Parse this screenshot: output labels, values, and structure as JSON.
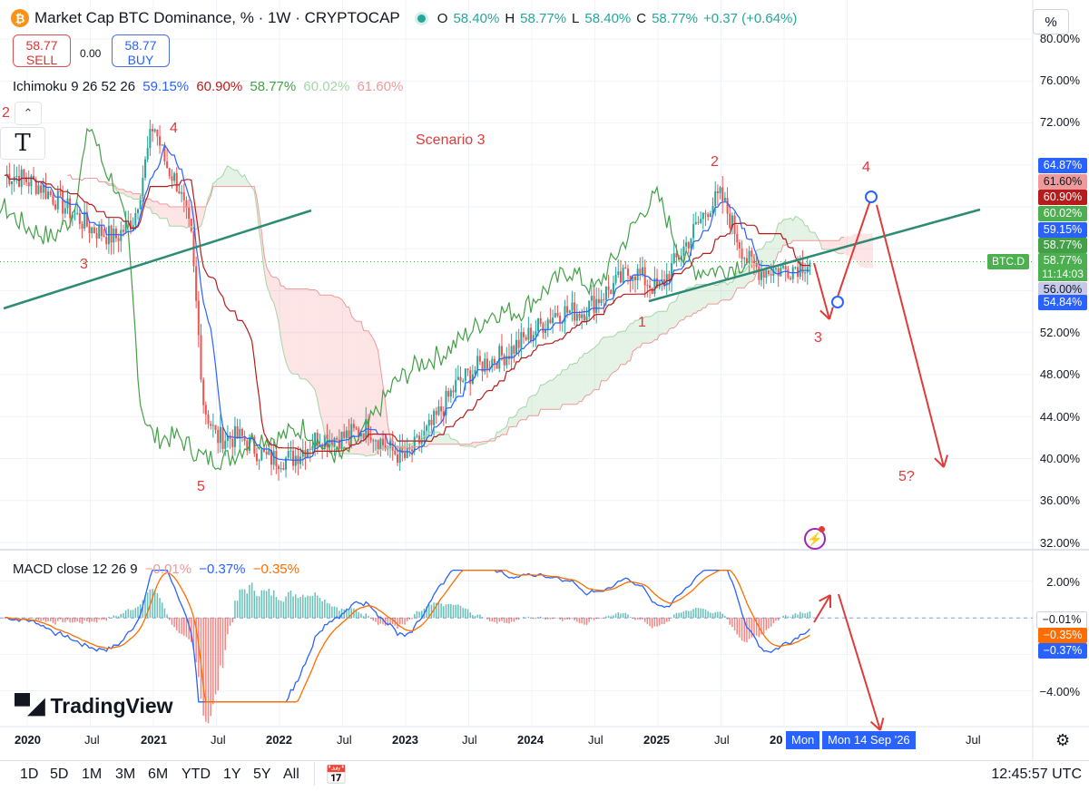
{
  "header": {
    "title": "Market Cap BTC Dominance, % · 1W · CRYPTOCAP",
    "o_label": "O",
    "o_value": "58.40%",
    "h_label": "H",
    "h_value": "58.77%",
    "l_label": "L",
    "l_value": "58.40%",
    "c_label": "C",
    "c_value": "58.77%",
    "change": "+0.37 (+0.64%)"
  },
  "trade": {
    "sell_price": "58.77",
    "sell_label": "SELL",
    "spread": "0.00",
    "buy_price": "58.77",
    "buy_label": "BUY"
  },
  "ichimoku": {
    "label": "Ichimoku 9 26 52 26",
    "values": [
      "59.15%",
      "60.90%",
      "58.77%",
      "60.02%",
      "61.60%"
    ],
    "colors": [
      "#2962ff",
      "#b71c1c",
      "#43a047",
      "#a5d6a7",
      "#ef9a9a"
    ]
  },
  "annotations": {
    "scenario": "Scenario 3",
    "waves": [
      "2",
      "4",
      "3",
      "5",
      "1",
      "2",
      "4",
      "3",
      "5?"
    ]
  },
  "price_axis": {
    "unit": "%",
    "ticks": [
      "80.00%",
      "76.00%",
      "72.00%",
      "52.00%",
      "48.00%",
      "44.00%",
      "40.00%",
      "36.00%",
      "32.00%"
    ],
    "tags": [
      {
        "text": "64.87%",
        "color": "#2962ff"
      },
      {
        "text": "61.60%",
        "color": "#ef9a9a"
      },
      {
        "text": "60.90%",
        "color": "#b71c1c"
      },
      {
        "text": "60.02%",
        "color": "#4caf50"
      },
      {
        "text": "59.15%",
        "color": "#2962ff"
      },
      {
        "text": "58.77%",
        "color": "#43a047"
      },
      {
        "text": "58.77%",
        "color": "#4caf50"
      },
      {
        "text": "56.00%",
        "color": "#c5cae9"
      },
      {
        "text": "54.84%",
        "color": "#2962ff"
      }
    ],
    "symbol_tag": "BTC.D",
    "countdown": "11:14:03"
  },
  "macd": {
    "label": "MACD close 12 26 9",
    "values": [
      "−0.01%",
      "−0.37%",
      "−0.35%"
    ],
    "colors": [
      "#ef9a9a",
      "#2962ff",
      "#ff6d00"
    ],
    "ticks": [
      "2.00%",
      "−4.00%"
    ],
    "tags": [
      {
        "text": "−0.01%",
        "color": "#ffffff"
      },
      {
        "text": "−0.35%",
        "color": "#ff6d00"
      },
      {
        "text": "−0.37%",
        "color": "#2962ff"
      }
    ]
  },
  "time_axis": {
    "labels": [
      "2020",
      "Jul",
      "2021",
      "Jul",
      "2022",
      "Jul",
      "2023",
      "Jul",
      "2024",
      "Jul",
      "2025",
      "Jul",
      "20",
      "Jul"
    ],
    "cursor_left": "Mon",
    "cursor_date": "Mon 14 Sep '26"
  },
  "branding": {
    "logo_text": "TradingView"
  },
  "ranges": [
    "1D",
    "5D",
    "1M",
    "3M",
    "6M",
    "YTD",
    "1Y",
    "5Y",
    "All"
  ],
  "clock": "12:45:57 UTC",
  "pct_button": "%",
  "chart_data": {
    "type": "line",
    "title": "Market Cap BTC Dominance, % · 1W · CRYPTOCAP",
    "ylabel": "%",
    "ylim": [
      31,
      81
    ],
    "series": [
      {
        "name": "BTC.D",
        "x": [
          2019.9,
          2020.1,
          2020.3,
          2020.5,
          2020.7,
          2020.85,
          2021.0,
          2021.1,
          2021.2,
          2021.3,
          2021.4,
          2021.5,
          2021.7,
          2021.9,
          2022.1,
          2022.3,
          2022.5,
          2022.7,
          2022.85,
          2023.0,
          2023.2,
          2023.4,
          2023.6,
          2023.8,
          2024.0,
          2024.2,
          2024.4,
          2024.6,
          2024.8,
          2025.0,
          2025.2,
          2025.4,
          2025.5,
          2025.6,
          2025.7,
          2025.8,
          2026.0,
          2026.2
        ],
        "y": [
          67,
          66,
          64,
          62,
          61,
          63,
          72,
          68,
          66,
          61,
          45,
          42,
          42,
          40,
          40,
          42,
          42,
          43,
          41,
          40,
          43,
          47,
          49,
          50,
          52,
          54,
          54,
          56,
          58,
          56,
          60,
          64,
          65,
          62,
          59,
          58,
          58,
          58.77
        ]
      }
    ],
    "ichimoku_last": {
      "conversion": 59.15,
      "base": 60.9,
      "lagging": 58.77,
      "span_a": 60.02,
      "span_b": 61.6
    },
    "macd_last": {
      "histogram": -0.01,
      "macd": -0.37,
      "signal": -0.35
    }
  }
}
